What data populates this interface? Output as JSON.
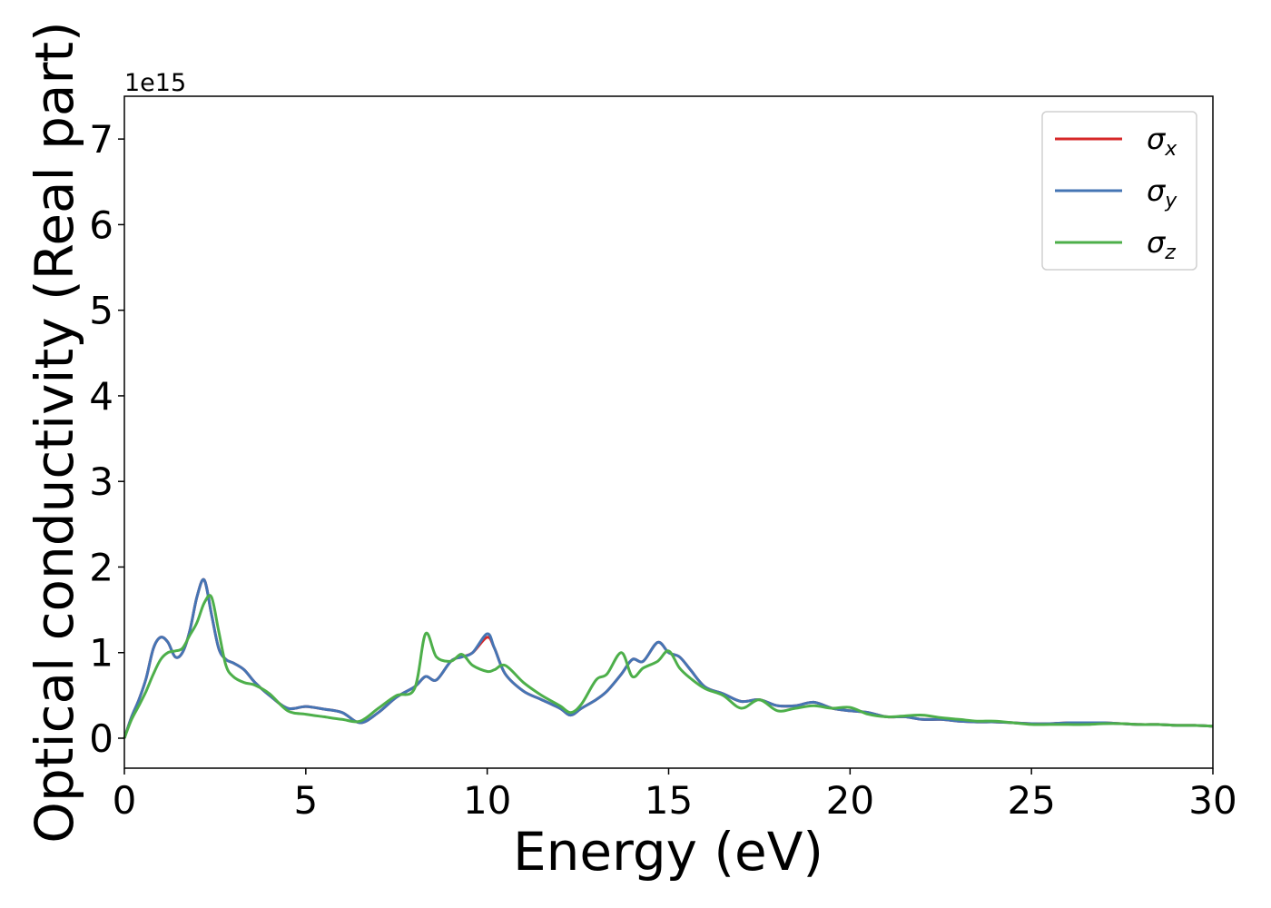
{
  "chart_data": {
    "type": "line",
    "xlabel": "Energy (eV)",
    "ylabel": "Optical conductivity (Real part)",
    "y_offset_label": "1e15",
    "xlim": [
      0,
      30
    ],
    "ylim": [
      -0.35,
      7.5
    ],
    "xticks": [
      0,
      5,
      10,
      15,
      20,
      25,
      30
    ],
    "xtick_labels": [
      "0",
      "5",
      "10",
      "15",
      "20",
      "25",
      "30"
    ],
    "yticks": [
      0,
      1,
      2,
      3,
      4,
      5,
      6,
      7
    ],
    "ytick_labels": [
      "0",
      "1",
      "2",
      "3",
      "4",
      "5",
      "6",
      "7"
    ],
    "grid": false,
    "legend_position": "top-right",
    "x": [
      0,
      0.2,
      0.4,
      0.6,
      0.8,
      1.0,
      1.2,
      1.4,
      1.6,
      1.8,
      2.0,
      2.2,
      2.4,
      2.6,
      2.8,
      3.0,
      3.3,
      3.6,
      4.0,
      4.5,
      5.0,
      5.5,
      6.0,
      6.5,
      7.0,
      7.5,
      8.0,
      8.3,
      8.6,
      9.0,
      9.3,
      9.6,
      10.0,
      10.2,
      10.5,
      11.0,
      11.5,
      12.0,
      12.3,
      12.6,
      13.0,
      13.3,
      13.7,
      14.0,
      14.3,
      14.7,
      15.0,
      15.3,
      15.6,
      16.0,
      16.5,
      17.0,
      17.5,
      18.0,
      18.5,
      19.0,
      19.5,
      20.0,
      20.5,
      21.0,
      21.5,
      22.0,
      22.5,
      23.0,
      23.5,
      24.0,
      24.5,
      25.0,
      25.5,
      26.0,
      26.5,
      27.0,
      27.5,
      28.0,
      28.5,
      29.0,
      29.5,
      30.0
    ],
    "series": [
      {
        "name": "σ",
        "subscript": "x",
        "color": "#d62728",
        "values": [
          0,
          0.25,
          0.45,
          0.7,
          1.05,
          1.18,
          1.12,
          0.95,
          1.0,
          1.25,
          1.65,
          1.85,
          1.45,
          1.05,
          0.92,
          0.88,
          0.8,
          0.65,
          0.5,
          0.35,
          0.37,
          0.34,
          0.3,
          0.18,
          0.3,
          0.48,
          0.6,
          0.72,
          0.68,
          0.9,
          0.95,
          1.0,
          1.18,
          1.05,
          0.75,
          0.55,
          0.45,
          0.35,
          0.27,
          0.35,
          0.45,
          0.55,
          0.75,
          0.92,
          0.9,
          1.12,
          1.0,
          0.95,
          0.8,
          0.6,
          0.52,
          0.43,
          0.45,
          0.38,
          0.38,
          0.42,
          0.35,
          0.32,
          0.3,
          0.25,
          0.25,
          0.22,
          0.22,
          0.2,
          0.19,
          0.19,
          0.18,
          0.17,
          0.17,
          0.18,
          0.18,
          0.18,
          0.17,
          0.16,
          0.16,
          0.15,
          0.15,
          0.14
        ]
      },
      {
        "name": "σ",
        "subscript": "y",
        "color": "#4575b4",
        "values": [
          0,
          0.25,
          0.45,
          0.7,
          1.05,
          1.18,
          1.12,
          0.95,
          1.0,
          1.25,
          1.65,
          1.85,
          1.45,
          1.05,
          0.92,
          0.88,
          0.8,
          0.65,
          0.5,
          0.35,
          0.37,
          0.34,
          0.3,
          0.18,
          0.3,
          0.48,
          0.6,
          0.72,
          0.68,
          0.9,
          0.95,
          1.0,
          1.22,
          1.05,
          0.75,
          0.55,
          0.45,
          0.35,
          0.27,
          0.35,
          0.45,
          0.55,
          0.75,
          0.92,
          0.9,
          1.12,
          1.0,
          0.95,
          0.8,
          0.6,
          0.52,
          0.43,
          0.45,
          0.38,
          0.38,
          0.42,
          0.35,
          0.32,
          0.3,
          0.25,
          0.25,
          0.22,
          0.22,
          0.2,
          0.19,
          0.19,
          0.18,
          0.17,
          0.17,
          0.18,
          0.18,
          0.18,
          0.17,
          0.16,
          0.16,
          0.15,
          0.15,
          0.14
        ]
      },
      {
        "name": "σ",
        "subscript": "z",
        "color": "#4daf4a",
        "values": [
          0,
          0.22,
          0.38,
          0.55,
          0.75,
          0.92,
          1.0,
          1.02,
          1.05,
          1.2,
          1.35,
          1.58,
          1.65,
          1.25,
          0.85,
          0.72,
          0.65,
          0.62,
          0.52,
          0.32,
          0.28,
          0.25,
          0.22,
          0.2,
          0.35,
          0.5,
          0.58,
          1.22,
          0.95,
          0.9,
          0.98,
          0.85,
          0.78,
          0.8,
          0.85,
          0.65,
          0.5,
          0.38,
          0.3,
          0.4,
          0.68,
          0.75,
          1.0,
          0.72,
          0.82,
          0.9,
          1.02,
          0.82,
          0.7,
          0.58,
          0.5,
          0.35,
          0.45,
          0.32,
          0.35,
          0.38,
          0.35,
          0.36,
          0.28,
          0.25,
          0.26,
          0.27,
          0.24,
          0.22,
          0.2,
          0.2,
          0.18,
          0.16,
          0.16,
          0.16,
          0.16,
          0.17,
          0.17,
          0.16,
          0.16,
          0.15,
          0.15,
          0.14
        ]
      }
    ]
  }
}
